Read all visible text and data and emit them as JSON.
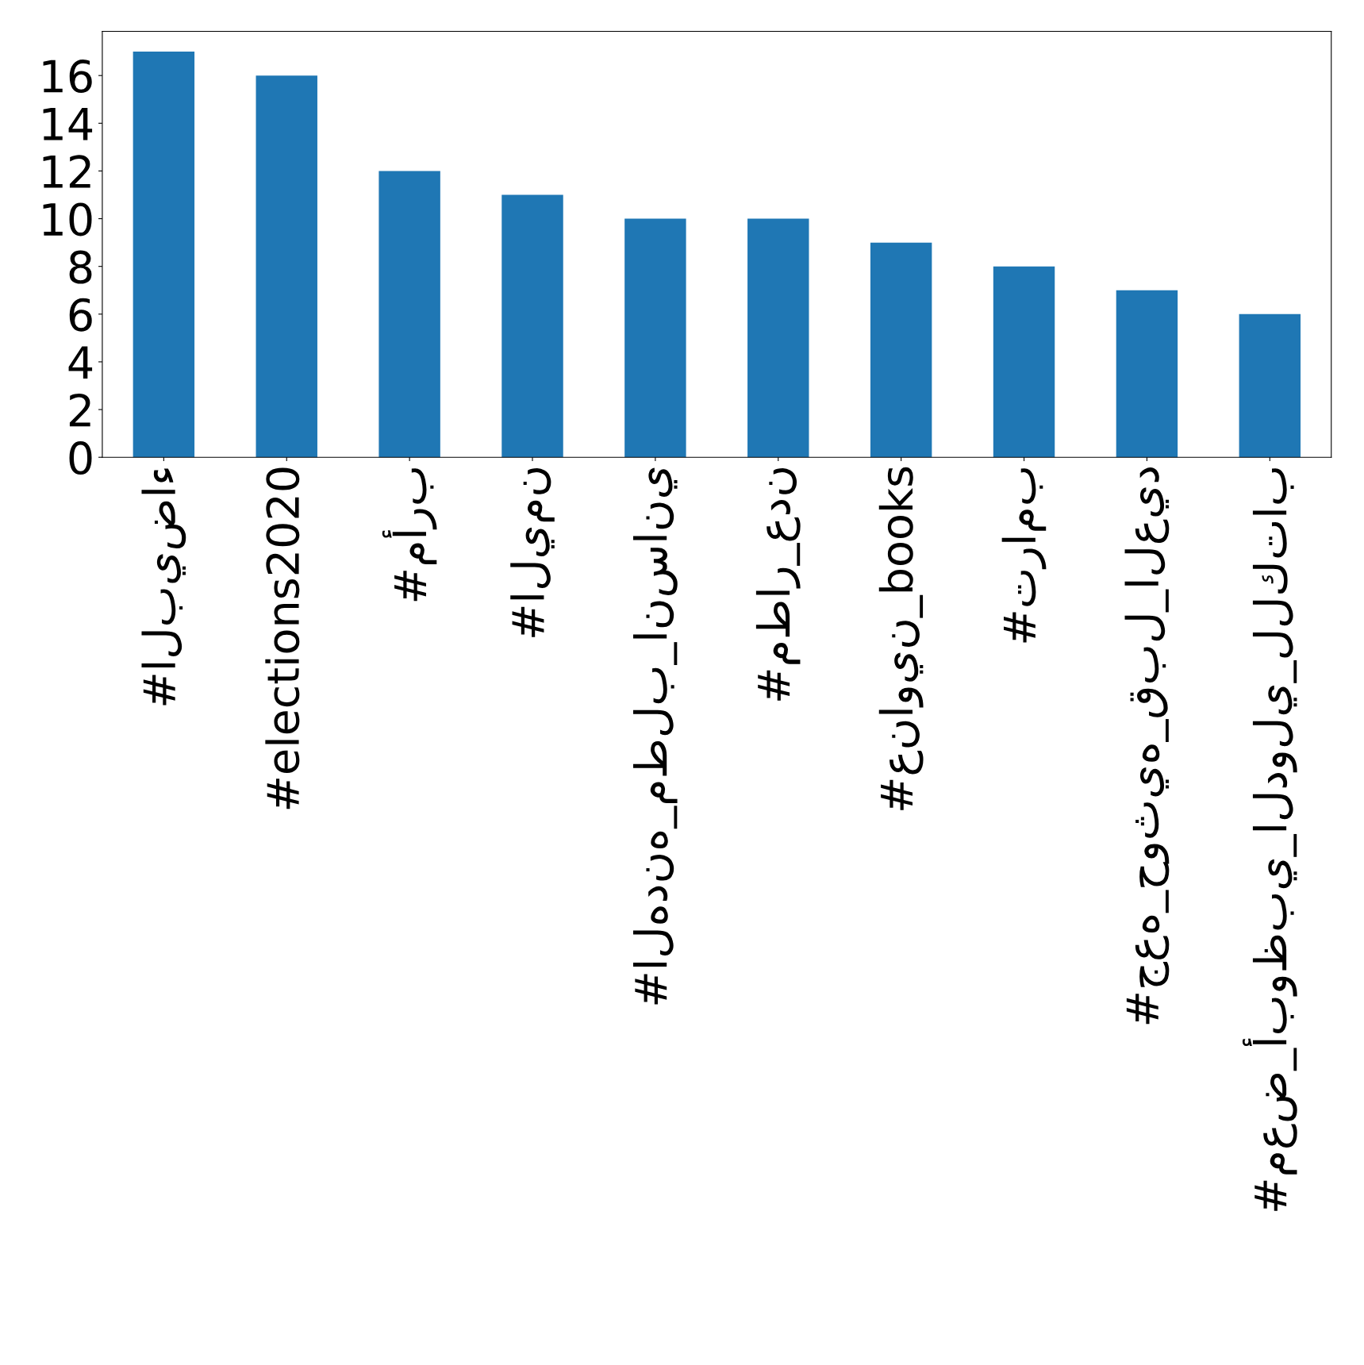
{
  "chart_data": {
    "type": "bar",
    "categories": [
      "#البيضاء",
      "#elections2020",
      "#مأرب",
      "#اليمن",
      "#الهدنه_مطلب_انساني",
      "#مطار_عدن",
      "#عناوين_books",
      "#ترامب",
      "#جعه_حوثيه_قبل_العيد",
      "#معض_أبوظبي_الدولي_للكتاب"
    ],
    "values": [
      17,
      16,
      12,
      11,
      10,
      10,
      9,
      8,
      7,
      6
    ],
    "color": "#1f77b4",
    "ylim": [
      0,
      17.85
    ],
    "yticks": [
      0,
      2,
      4,
      6,
      8,
      10,
      12,
      14,
      16
    ],
    "grid": false,
    "legend": false
  }
}
